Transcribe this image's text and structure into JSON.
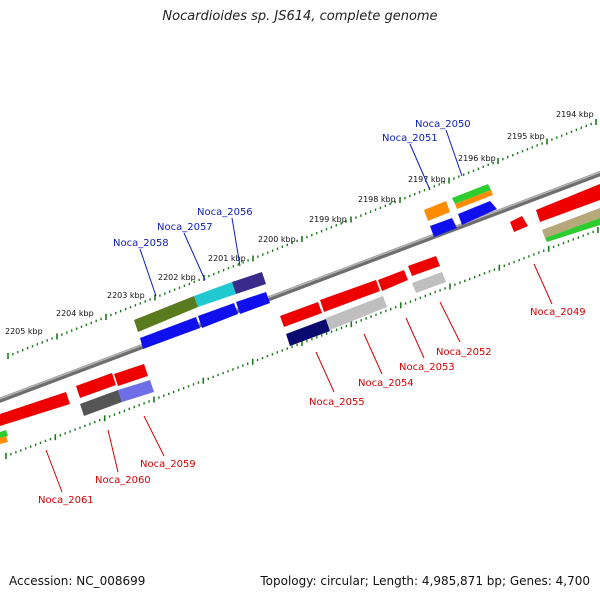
{
  "title": "Nocardioides sp. JS614, complete genome",
  "accession": "Accession: NC_008699",
  "summary": "Topology: circular; Length: 4,985,871 bp; Genes: 4,700",
  "colors": {
    "forward_label": "#0b1db8",
    "reverse_label": "#d40000",
    "backbone": "#8a8a8a",
    "tick": "#1a7a1a"
  },
  "scale_labels": [
    "2194 kbp",
    "2195 kbp",
    "2196 kbp",
    "2197 kbp",
    "2198 kbp",
    "2199 kbp",
    "2200 kbp",
    "2201 kbp",
    "2202 kbp",
    "2203 kbp",
    "2204 kbp",
    "2205 kbp"
  ],
  "forward_genes": [
    {
      "name": "Noca_2050"
    },
    {
      "name": "Noca_2051"
    },
    {
      "name": "Noca_2056"
    },
    {
      "name": "Noca_2057"
    },
    {
      "name": "Noca_2058"
    }
  ],
  "reverse_genes": [
    {
      "name": "Noca_2049"
    },
    {
      "name": "Noca_2052"
    },
    {
      "name": "Noca_2053"
    },
    {
      "name": "Noca_2054"
    },
    {
      "name": "Noca_2055"
    },
    {
      "name": "Noca_2059"
    },
    {
      "name": "Noca_2060"
    },
    {
      "name": "Noca_2061"
    }
  ]
}
